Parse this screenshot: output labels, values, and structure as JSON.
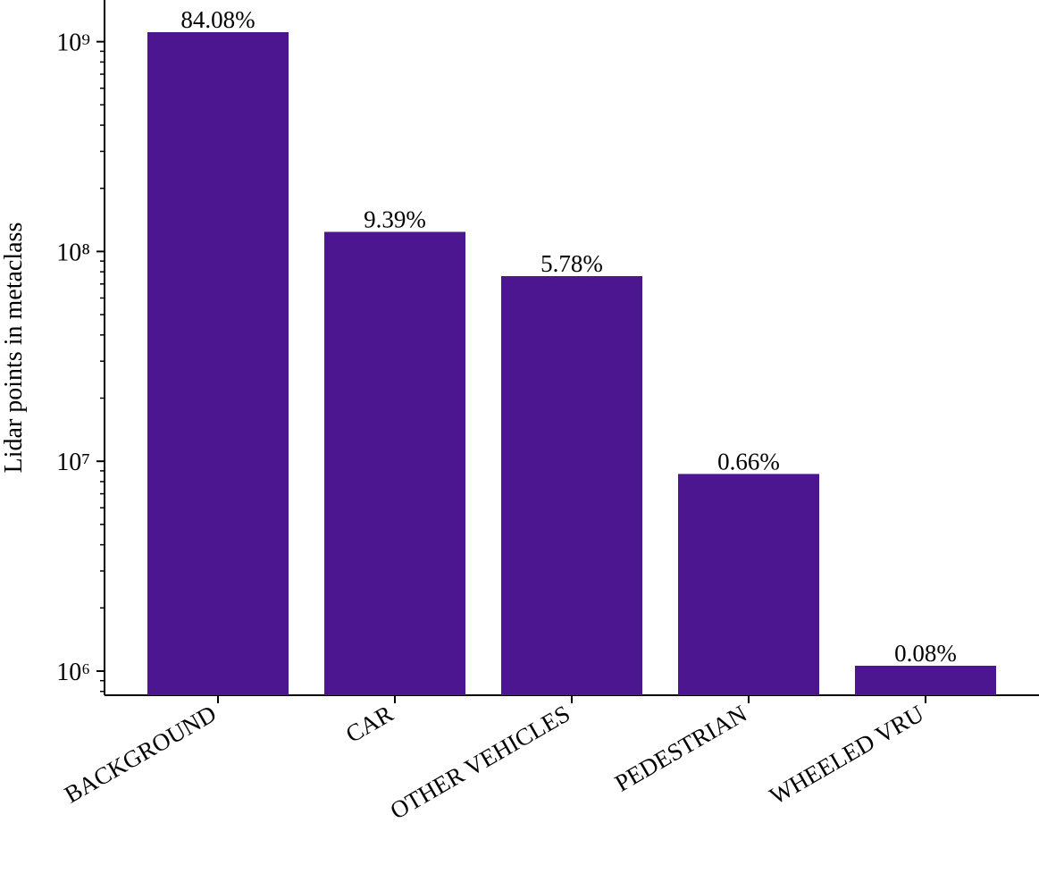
{
  "chart_data": {
    "type": "bar",
    "y_label": "Lidar points in metaclass",
    "categories": [
      "BACKGROUND",
      "CAR",
      "OTHER VEHICLES",
      "PEDESTRIAN",
      "WHEELED VRU"
    ],
    "values": [
      1110000000,
      124000000,
      76300000,
      8700000,
      1060000
    ],
    "value_labels": [
      "84.08%",
      "9.39%",
      "5.78%",
      "0.66%",
      "0.08%"
    ],
    "color": "#4b168f",
    "y_scale": "log",
    "ylim": [
      767000,
      1580000000
    ],
    "yticks": [
      {
        "value": 1000000,
        "label": "10⁶"
      },
      {
        "value": 10000000,
        "label": "10⁷"
      },
      {
        "value": 100000000,
        "label": "10⁸"
      },
      {
        "value": 1000000000,
        "label": "10⁹"
      }
    ],
    "yminorticks": [
      800000,
      900000,
      2000000,
      3000000,
      4000000,
      5000000,
      6000000,
      7000000,
      8000000,
      9000000,
      20000000,
      30000000,
      40000000,
      50000000,
      60000000,
      70000000,
      80000000,
      90000000,
      200000000,
      300000000,
      400000000,
      500000000,
      600000000,
      700000000,
      800000000,
      900000000
    ],
    "grid": false
  }
}
